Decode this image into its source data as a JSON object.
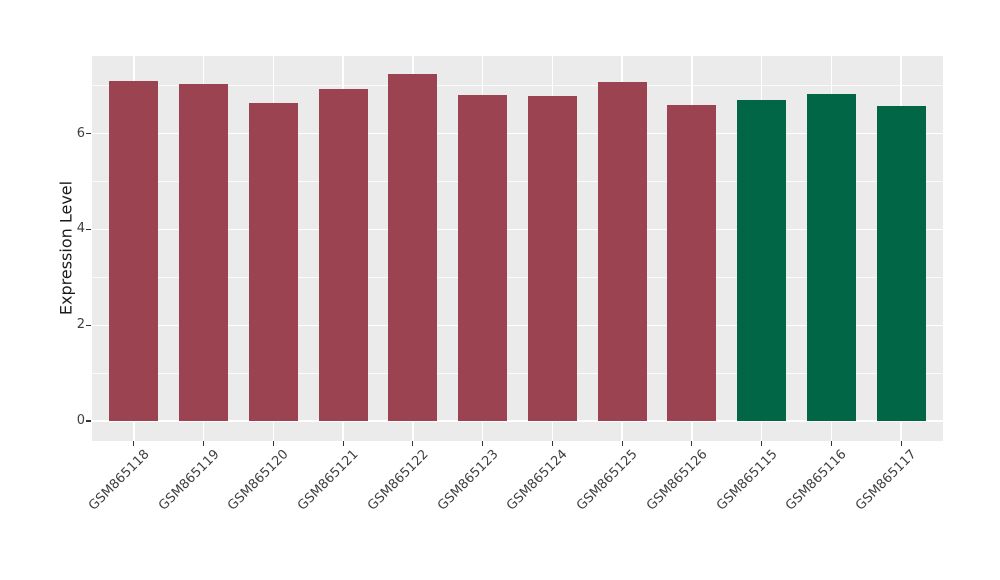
{
  "chart_data": {
    "type": "bar",
    "title": "",
    "xlabel": "",
    "ylabel": "Expression Level",
    "categories": [
      "GSM865118",
      "GSM865119",
      "GSM865120",
      "GSM865121",
      "GSM865122",
      "GSM865123",
      "GSM865124",
      "GSM865125",
      "GSM865126",
      "GSM865115",
      "GSM865116",
      "GSM865117"
    ],
    "values": [
      7.1,
      7.03,
      6.63,
      6.94,
      7.25,
      6.8,
      6.78,
      7.07,
      6.6,
      6.7,
      6.82,
      6.58
    ],
    "bar_colors": [
      "#9B4351",
      "#9B4351",
      "#9B4351",
      "#9B4351",
      "#9B4351",
      "#9B4351",
      "#9B4351",
      "#9B4351",
      "#9B4351",
      "#006646",
      "#006646",
      "#006646"
    ],
    "groups": [
      {
        "name": "maroon-group",
        "color": "#9B4351",
        "categories": [
          "GSM865118",
          "GSM865119",
          "GSM865120",
          "GSM865121",
          "GSM865122",
          "GSM865123",
          "GSM865124",
          "GSM865125",
          "GSM865126"
        ]
      },
      {
        "name": "green-group",
        "color": "#006646",
        "categories": [
          "GSM865115",
          "GSM865116",
          "GSM865117"
        ]
      }
    ],
    "y_ticks": [
      0,
      2,
      4,
      6
    ],
    "y_tick_labels": [
      "0",
      "2",
      "4",
      "6"
    ],
    "y_minor_ticks": [
      1,
      3,
      5,
      7
    ],
    "ylim": [
      0,
      7.62
    ],
    "x_label_angle": 45,
    "grid": true,
    "legend_position": "none",
    "panel_bg": "#EBEBEB",
    "grid_color": "#FFFFFF",
    "axis_text_color": "#404040",
    "axis_title_color": "#1A1A1A",
    "tick_color": "#333333"
  }
}
